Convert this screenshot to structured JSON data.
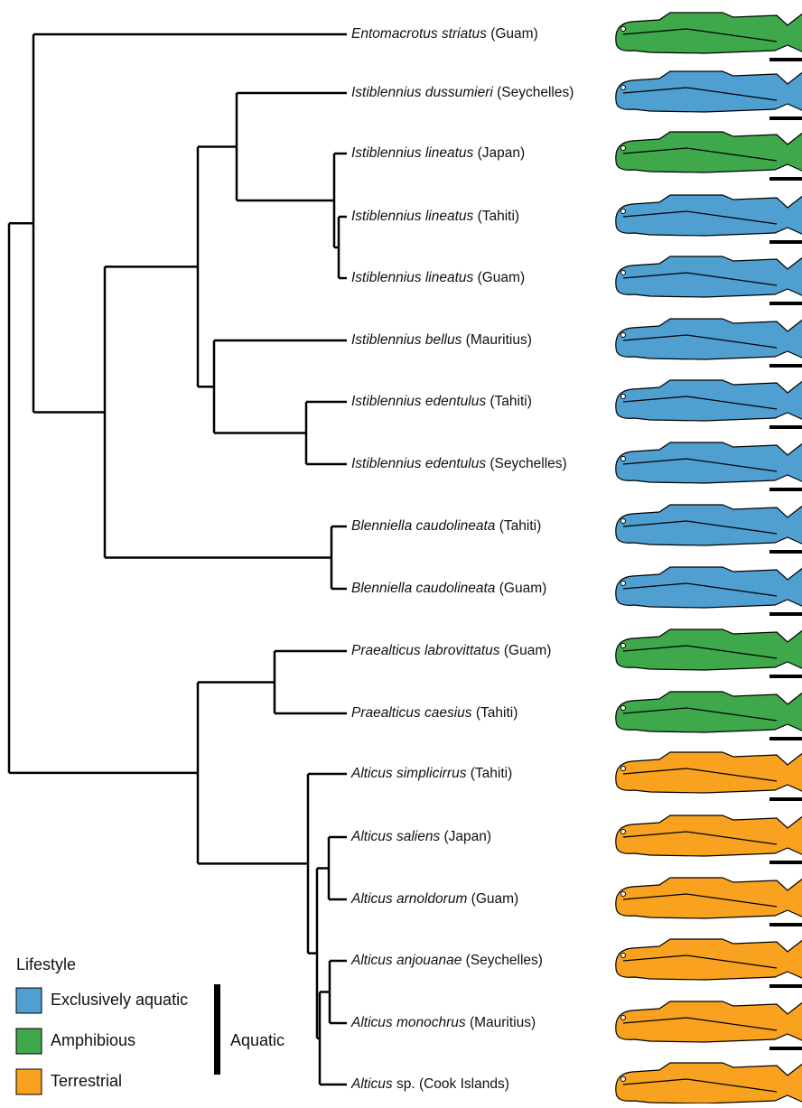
{
  "taxa": [
    {
      "italic": "Entomacrotus striatus",
      "plain": "(Guam)"
    },
    {
      "italic": "Istiblennius dussumieri",
      "plain": "(Seychelles)"
    },
    {
      "italic": "Istiblennius lineatus",
      "plain": "(Japan)"
    },
    {
      "italic": "Istiblennius lineatus",
      "plain": "(Tahiti)"
    },
    {
      "italic": "Istiblennius lineatus",
      "plain": "(Guam)"
    },
    {
      "italic": "Istiblennius bellus",
      "plain": "(Mauritius)"
    },
    {
      "italic": "Istiblennius edentulus",
      "plain": "(Tahiti)"
    },
    {
      "italic": "Istiblennius edentulus",
      "plain": "(Seychelles)"
    },
    {
      "italic": "Blenniella caudolineata",
      "plain": "(Tahiti)"
    },
    {
      "italic": "Blenniella caudolineata",
      "plain": "(Guam)"
    },
    {
      "italic": "Praealticus labrovittatus",
      "plain": "(Guam)"
    },
    {
      "italic": "Praealticus caesius",
      "plain": "(Tahiti)"
    },
    {
      "italic": "Alticus simplicirrus",
      "plain": "(Tahiti)"
    },
    {
      "italic": "Alticus saliens",
      "plain": "(Japan)"
    },
    {
      "italic": "Alticus arnoldorum",
      "plain": "(Guam)"
    },
    {
      "italic": "Alticus anjouanae",
      "plain": "(Seychelles)"
    },
    {
      "italic": "Alticus monochrus",
      "plain": "(Mauritius)"
    },
    {
      "italic": "Alticus",
      "plain": "sp. (Cook Islands)"
    }
  ],
  "legend": {
    "title": "Lifestyle",
    "items": [
      "Exclusively aquatic",
      "Amphibious",
      "Terrestrial"
    ],
    "group_label": "Aquatic"
  }
}
